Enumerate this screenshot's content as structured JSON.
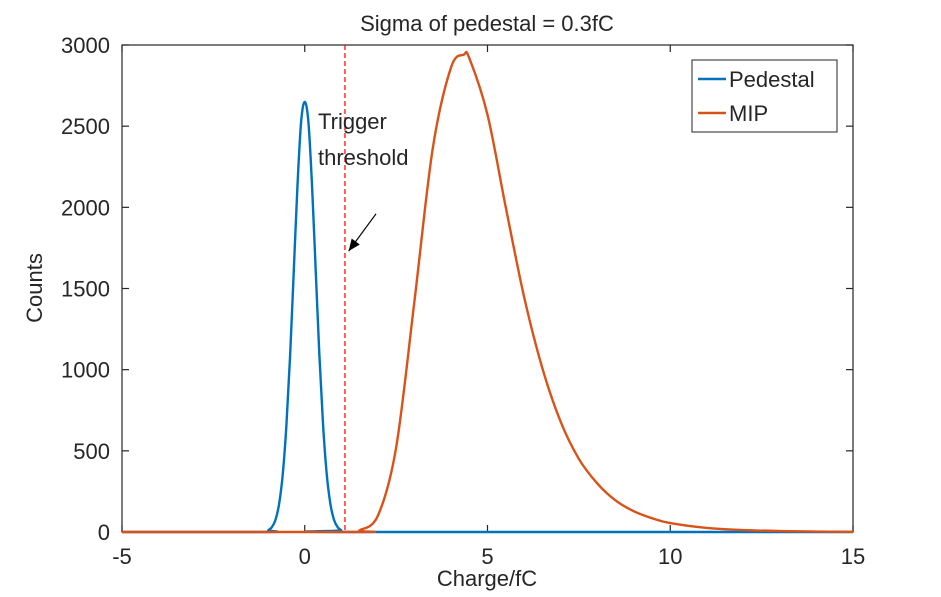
{
  "chart_data": {
    "type": "line",
    "title": "Sigma of pedestal = 0.3fC",
    "xlabel": "Charge/fC",
    "ylabel": "Counts",
    "xlim": [
      -5,
      15
    ],
    "ylim": [
      0,
      3000
    ],
    "xticks": [
      -5,
      0,
      5,
      10,
      15
    ],
    "yticks": [
      0,
      500,
      1000,
      1500,
      2000,
      2500,
      3000
    ],
    "grid": false,
    "legend_position": "top-right",
    "series": [
      {
        "name": "Pedestal",
        "color": "#0072BD",
        "x": [
          -1.0,
          -0.9,
          -0.8,
          -0.7,
          -0.6,
          -0.5,
          -0.4,
          -0.3,
          -0.2,
          -0.1,
          0.0,
          0.1,
          0.2,
          0.3,
          0.4,
          0.5,
          0.6,
          0.7,
          0.8,
          0.9,
          1.0
        ],
        "y": [
          10,
          30,
          75,
          175,
          360,
          665,
          1090,
          1610,
          2130,
          2525,
          2650,
          2525,
          2130,
          1610,
          1090,
          665,
          360,
          175,
          75,
          30,
          10
        ]
      },
      {
        "name": "MIP",
        "color": "#D95319",
        "x": [
          1.5,
          2.0,
          2.5,
          3.0,
          3.5,
          4.0,
          4.35,
          4.5,
          5.0,
          5.5,
          6.0,
          6.5,
          7.0,
          7.5,
          8.0,
          8.5,
          9.0,
          9.5,
          10.0,
          11.0,
          12.0,
          13.0,
          14.0,
          15.0
        ],
        "y": [
          10,
          100,
          520,
          1420,
          2360,
          2860,
          2940,
          2920,
          2570,
          2000,
          1450,
          1010,
          680,
          450,
          300,
          195,
          128,
          85,
          55,
          25,
          12,
          6,
          3,
          1
        ]
      }
    ],
    "threshold": {
      "x": 1.1,
      "color": "#FF0000",
      "style": "dashed"
    },
    "annotation": {
      "lines": [
        "Trigger",
        "threshold"
      ],
      "arrow_from": [
        1.95,
        1960
      ],
      "arrow_to": [
        1.2,
        1730
      ]
    }
  }
}
